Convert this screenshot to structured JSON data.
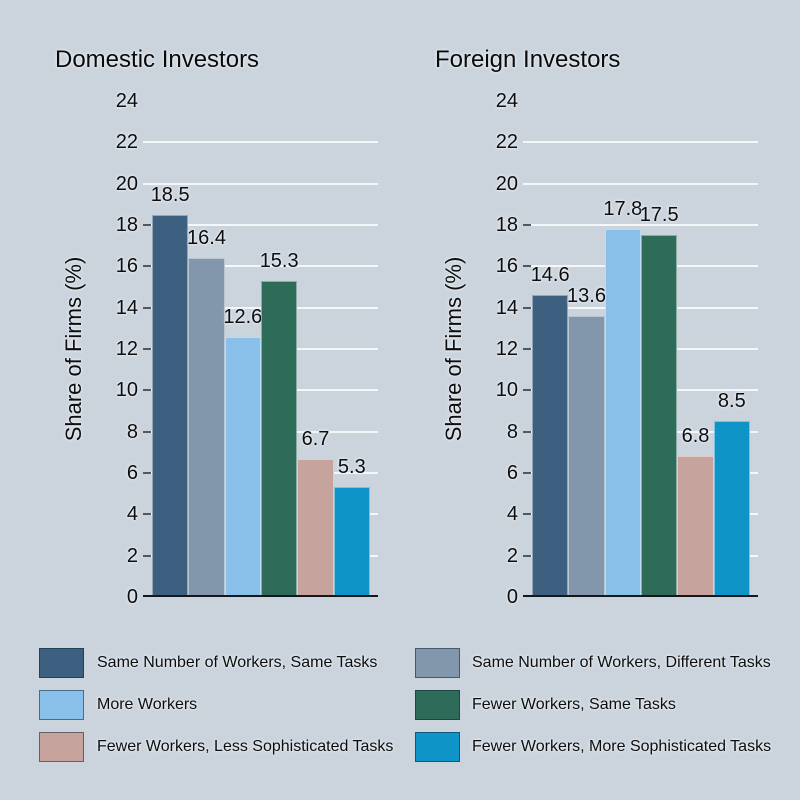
{
  "figure": {
    "background_color": "#cbd3dd",
    "gridline_color": "#f3f7fa",
    "baseline_color": "#14181c",
    "text_color": "#0d0d0d"
  },
  "chart_data": [
    {
      "type": "bar",
      "title": "Domestic Investors",
      "xlabel": "",
      "ylabel": "Share of Firms (%)",
      "ylim": [
        0,
        24
      ],
      "yticks": [
        0,
        2,
        4,
        6,
        8,
        10,
        12,
        14,
        16,
        18,
        20,
        22,
        24
      ],
      "grid": "horizontal",
      "legend_position": "bottom",
      "categories": [
        "Same Number of Workers, Same Tasks",
        "Same Number of Workers, Different Tasks",
        "More Workers",
        "Fewer Workers, Same Tasks",
        "Fewer Workers, Less Sophisticated Tasks",
        "Fewer Workers, More Sophisticated Tasks"
      ],
      "values": [
        18.5,
        16.4,
        12.6,
        15.3,
        6.7,
        5.3
      ],
      "colors": [
        "#3d6080",
        "#8297ac",
        "#88c0ea",
        "#2e6b59",
        "#c6a49d",
        "#0e94c6"
      ]
    },
    {
      "type": "bar",
      "title": "Foreign Investors",
      "xlabel": "",
      "ylabel": "Share of Firms (%)",
      "ylim": [
        0,
        24
      ],
      "yticks": [
        0,
        2,
        4,
        6,
        8,
        10,
        12,
        14,
        16,
        18,
        20,
        22,
        24
      ],
      "grid": "horizontal",
      "legend_position": "bottom",
      "categories": [
        "Same Number of Workers, Same Tasks",
        "Same Number of Workers, Different Tasks",
        "More Workers",
        "Fewer Workers, Same Tasks",
        "Fewer Workers, Less Sophisticated Tasks",
        "Fewer Workers, More Sophisticated Tasks"
      ],
      "values": [
        14.6,
        13.6,
        17.8,
        17.5,
        6.8,
        8.5
      ],
      "colors": [
        "#3d6080",
        "#8297ac",
        "#88c0ea",
        "#2e6b59",
        "#c6a49d",
        "#0e94c6"
      ]
    }
  ],
  "legend": {
    "columns": [
      {
        "items": [
          {
            "label": "Same Number of Workers, Same Tasks",
            "color": "#3d6080"
          },
          {
            "label": "More Workers",
            "color": "#88c0ea"
          },
          {
            "label": "Fewer Workers, Less Sophisticated Tasks",
            "color": "#c6a49d"
          }
        ]
      },
      {
        "items": [
          {
            "label": "Same Number of Workers, Different Tasks",
            "color": "#8297ac"
          },
          {
            "label": "Fewer Workers, Same Tasks",
            "color": "#2e6b59"
          },
          {
            "label": "Fewer Workers, More Sophisticated Tasks",
            "color": "#0e94c6"
          }
        ]
      }
    ]
  }
}
